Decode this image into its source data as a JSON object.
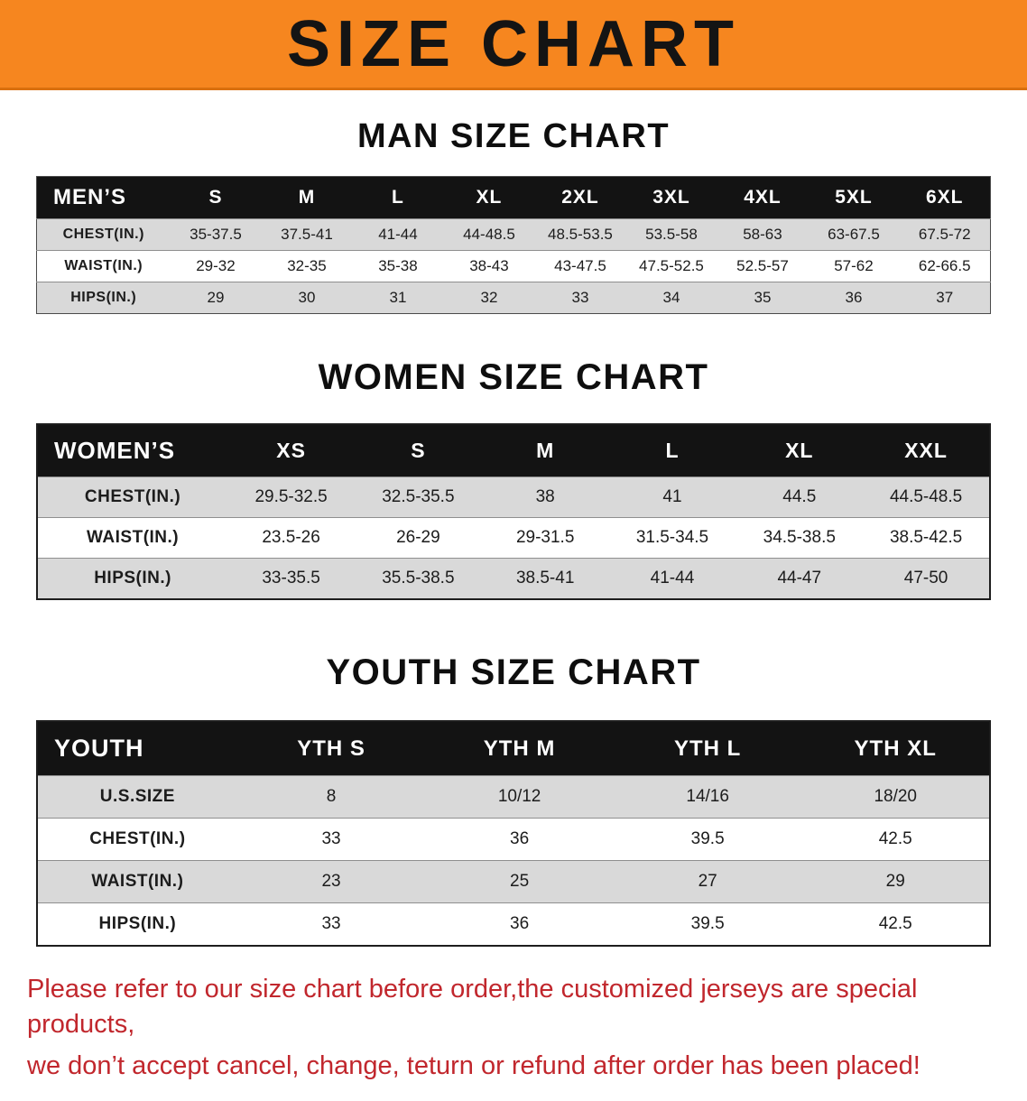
{
  "banner": {
    "title": "SIZE CHART"
  },
  "colors": {
    "banner_bg": "#f6861f",
    "header_bg": "#131313",
    "header_text": "#ffffff",
    "row_alt": "#d9d9d9",
    "notice": "#c1272d"
  },
  "sections": [
    {
      "heading": "MAN SIZE CHART",
      "table": {
        "header": [
          "MEN’S",
          "S",
          "M",
          "L",
          "XL",
          "2XL",
          "3XL",
          "4XL",
          "5XL",
          "6XL"
        ],
        "rows": [
          [
            "CHEST(IN.)",
            "35-37.5",
            "37.5-41",
            "41-44",
            "44-48.5",
            "48.5-53.5",
            "53.5-58",
            "58-63",
            "63-67.5",
            "67.5-72"
          ],
          [
            "WAIST(IN.)",
            "29-32",
            "32-35",
            "35-38",
            "38-43",
            "43-47.5",
            "47.5-52.5",
            "52.5-57",
            "57-62",
            "62-66.5"
          ],
          [
            "HIPS(IN.)",
            "29",
            "30",
            "31",
            "32",
            "33",
            "34",
            "35",
            "36",
            "37"
          ]
        ]
      }
    },
    {
      "heading": "WOMEN SIZE CHART",
      "table": {
        "header": [
          "WOMEN’S",
          "XS",
          "S",
          "M",
          "L",
          "XL",
          "XXL"
        ],
        "rows": [
          [
            "CHEST(IN.)",
            "29.5-32.5",
            "32.5-35.5",
            "38",
            "41",
            "44.5",
            "44.5-48.5"
          ],
          [
            "WAIST(IN.)",
            "23.5-26",
            "26-29",
            "29-31.5",
            "31.5-34.5",
            "34.5-38.5",
            "38.5-42.5"
          ],
          [
            "HIPS(IN.)",
            "33-35.5",
            "35.5-38.5",
            "38.5-41",
            "41-44",
            "44-47",
            "47-50"
          ]
        ]
      }
    },
    {
      "heading": "YOUTH SIZE CHART",
      "table": {
        "header": [
          "YOUTH",
          "YTH S",
          "YTH M",
          "YTH L",
          "YTH XL"
        ],
        "rows": [
          [
            "U.S.SIZE",
            "8",
            "10/12",
            "14/16",
            "18/20"
          ],
          [
            "CHEST(IN.)",
            "33",
            "36",
            "39.5",
            "42.5"
          ],
          [
            "WAIST(IN.)",
            "23",
            "25",
            "27",
            "29"
          ],
          [
            "HIPS(IN.)",
            "33",
            "36",
            "39.5",
            "42.5"
          ]
        ]
      }
    }
  ],
  "notice": {
    "line1": "Please refer to our size chart before order,the customized jerseys are special products,",
    "line2": "we don’t accept cancel, change, teturn or refund after order has been placed!"
  }
}
